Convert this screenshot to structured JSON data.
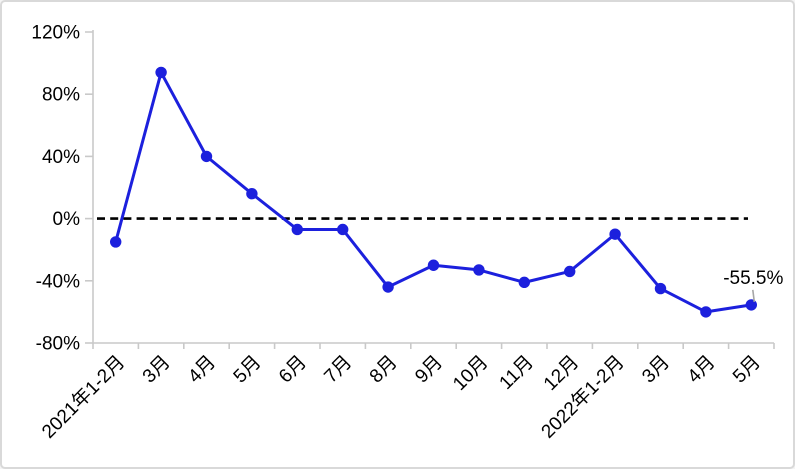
{
  "panel": {
    "background": "#ffffff",
    "border_color": "#d9d9d9"
  },
  "chart_data": {
    "type": "line",
    "categories": [
      "2021年1-2月",
      "3月",
      "4月",
      "5月",
      "6月",
      "7月",
      "8月",
      "9月",
      "10月",
      "11月",
      "12月",
      "2022年1-2月",
      "3月",
      "4月",
      "5月"
    ],
    "values": [
      -15,
      94,
      40,
      16,
      -7,
      -7,
      -44,
      -30,
      -33,
      -41,
      -34,
      -10,
      -45,
      -60,
      -55.5
    ],
    "ylim": [
      -80,
      120
    ],
    "yticks": [
      120,
      80,
      40,
      0,
      -40,
      -80
    ],
    "ytick_labels": [
      "120%",
      "80%",
      "40%",
      "0%",
      "-40%",
      "-80%"
    ],
    "xlabel": "",
    "ylabel": "",
    "grid": false,
    "legend": "none",
    "zero_line_style": "dashed",
    "annotation": {
      "text": "-55.5%",
      "target_index": 14
    },
    "colors": {
      "series": "#1c20dd",
      "axis": "#c9c9c9",
      "zero_line": "#000000",
      "annotation_leader": "#a6a6a6",
      "text": "#000000"
    }
  }
}
